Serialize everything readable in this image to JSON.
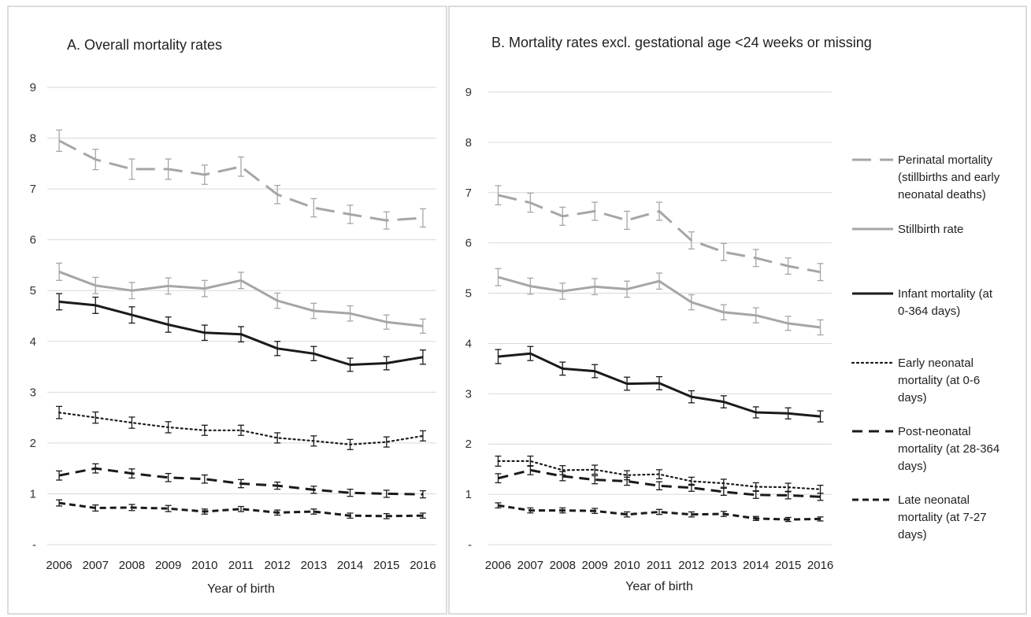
{
  "colors": {
    "perinatal": "#a6a6a6",
    "stillbirth": "#a6a6a6",
    "infant": "#1a1a1a",
    "early_neonatal": "#1a1a1a",
    "post_neonatal": "#1a1a1a",
    "late_neonatal": "#1a1a1a",
    "grid": "#d9d9d9",
    "panel_border": "#d0d0d0"
  },
  "legend": {
    "placement": "right",
    "items": [
      {
        "series": "Perinatal mortality",
        "lines": [
          "Perinatal mortality",
          "(stillbirths and early",
          "neonatal deaths)"
        ]
      },
      {
        "series": "Stillbirth rate",
        "lines": [
          "Stillbirth rate"
        ]
      },
      {
        "series": "Infant mortality",
        "lines": [
          "Infant mortality (at",
          "0-364 days)"
        ]
      },
      {
        "series": "Early neonatal mortality",
        "lines": [
          "Early neonatal",
          "mortality (at 0-6",
          "days)"
        ]
      },
      {
        "series": "Post-neonatal mortality",
        "lines": [
          "Post-neonatal",
          "mortality (at 28-364",
          "days)"
        ]
      },
      {
        "series": "Late neonatal mortality",
        "lines": [
          "Late neonatal",
          "mortality (at 7-27",
          "days)"
        ]
      }
    ]
  },
  "chart_data": [
    {
      "type": "line",
      "title": "A. Overall mortality rates",
      "xlabel": "Year of birth",
      "ylabel": "",
      "x": [
        "2006",
        "2007",
        "2008",
        "2009",
        "2010",
        "2011",
        "2012",
        "2013",
        "2014",
        "2015",
        "2016"
      ],
      "ylim": [
        0,
        9
      ],
      "yticks": [
        "-",
        "1",
        "2",
        "3",
        "4",
        "5",
        "6",
        "7",
        "8",
        "9"
      ],
      "grid": true,
      "error_bars": true,
      "series": [
        {
          "name": "Perinatal mortality (stillbirths and early neonatal deaths)",
          "style": "longdash",
          "color": "#a6a6a6",
          "values": [
            7.95,
            7.58,
            7.39,
            7.39,
            7.28,
            7.44,
            6.89,
            6.63,
            6.5,
            6.38,
            6.43
          ],
          "err": [
            0.21,
            0.2,
            0.2,
            0.2,
            0.19,
            0.19,
            0.18,
            0.18,
            0.18,
            0.17,
            0.18
          ]
        },
        {
          "name": "Stillbirth rate",
          "style": "solid",
          "color": "#a6a6a6",
          "values": [
            5.37,
            5.1,
            5.0,
            5.09,
            5.04,
            5.2,
            4.8,
            4.6,
            4.55,
            4.38,
            4.3
          ],
          "err": [
            0.17,
            0.16,
            0.16,
            0.16,
            0.16,
            0.16,
            0.15,
            0.15,
            0.15,
            0.14,
            0.14
          ]
        },
        {
          "name": "Infant mortality (at 0-364 days)",
          "style": "solid",
          "color": "#1a1a1a",
          "values": [
            4.78,
            4.71,
            4.52,
            4.33,
            4.17,
            4.14,
            3.86,
            3.76,
            3.54,
            3.57,
            3.69
          ],
          "err": [
            0.16,
            0.16,
            0.16,
            0.15,
            0.15,
            0.15,
            0.14,
            0.14,
            0.13,
            0.13,
            0.14
          ]
        },
        {
          "name": "Early neonatal mortality (at 0-6 days)",
          "style": "dotted",
          "color": "#1a1a1a",
          "values": [
            2.6,
            2.5,
            2.4,
            2.31,
            2.25,
            2.25,
            2.1,
            2.04,
            1.97,
            2.02,
            2.14
          ],
          "err": [
            0.12,
            0.11,
            0.11,
            0.11,
            0.1,
            0.1,
            0.1,
            0.1,
            0.1,
            0.1,
            0.1
          ]
        },
        {
          "name": "Post-neonatal mortality (at 28-364 days)",
          "style": "dash",
          "color": "#1a1a1a",
          "values": [
            1.36,
            1.5,
            1.4,
            1.32,
            1.29,
            1.2,
            1.16,
            1.08,
            1.02,
            1.0,
            0.99
          ],
          "err": [
            0.09,
            0.09,
            0.09,
            0.08,
            0.08,
            0.08,
            0.07,
            0.07,
            0.07,
            0.07,
            0.07
          ]
        },
        {
          "name": "Late neonatal mortality (at 7-27 days)",
          "style": "shortdash",
          "color": "#1a1a1a",
          "values": [
            0.82,
            0.72,
            0.73,
            0.71,
            0.65,
            0.7,
            0.63,
            0.65,
            0.57,
            0.56,
            0.57
          ],
          "err": [
            0.06,
            0.06,
            0.06,
            0.06,
            0.05,
            0.05,
            0.05,
            0.05,
            0.05,
            0.05,
            0.05
          ]
        }
      ]
    },
    {
      "type": "line",
      "title": "B. Mortality rates excl. gestational age <24 weeks or missing",
      "xlabel": "Year of birth",
      "ylabel": "",
      "x": [
        "2006",
        "2007",
        "2008",
        "2009",
        "2010",
        "2011",
        "2012",
        "2013",
        "2014",
        "2015",
        "2016"
      ],
      "ylim": [
        0,
        9
      ],
      "yticks": [
        "-",
        "1",
        "2",
        "3",
        "4",
        "5",
        "6",
        "7",
        "8",
        "9"
      ],
      "grid": true,
      "error_bars": true,
      "series": [
        {
          "name": "Perinatal mortality (stillbirths and early neonatal deaths)",
          "style": "longdash",
          "color": "#a6a6a6",
          "values": [
            6.95,
            6.8,
            6.53,
            6.63,
            6.45,
            6.63,
            6.05,
            5.82,
            5.7,
            5.54,
            5.42
          ],
          "err": [
            0.19,
            0.19,
            0.18,
            0.18,
            0.18,
            0.18,
            0.17,
            0.17,
            0.17,
            0.16,
            0.17
          ]
        },
        {
          "name": "Stillbirth rate",
          "style": "solid",
          "color": "#a6a6a6",
          "values": [
            5.32,
            5.14,
            5.04,
            5.13,
            5.08,
            5.24,
            4.82,
            4.62,
            4.56,
            4.4,
            4.32
          ],
          "err": [
            0.17,
            0.16,
            0.16,
            0.16,
            0.16,
            0.16,
            0.15,
            0.15,
            0.15,
            0.14,
            0.15
          ]
        },
        {
          "name": "Infant mortality (at 0-364 days)",
          "style": "solid",
          "color": "#1a1a1a",
          "values": [
            3.74,
            3.8,
            3.5,
            3.45,
            3.2,
            3.21,
            2.94,
            2.84,
            2.63,
            2.61,
            2.55
          ],
          "err": [
            0.14,
            0.14,
            0.13,
            0.13,
            0.13,
            0.13,
            0.12,
            0.12,
            0.11,
            0.11,
            0.11
          ]
        },
        {
          "name": "Early neonatal mortality (at 0-6 days)",
          "style": "dotted",
          "color": "#1a1a1a",
          "values": [
            1.66,
            1.66,
            1.48,
            1.49,
            1.38,
            1.4,
            1.26,
            1.22,
            1.15,
            1.14,
            1.1
          ],
          "err": [
            0.1,
            0.1,
            0.09,
            0.09,
            0.09,
            0.09,
            0.08,
            0.08,
            0.08,
            0.08,
            0.08
          ]
        },
        {
          "name": "Post-neonatal mortality (at 28-364 days)",
          "style": "dash",
          "color": "#1a1a1a",
          "values": [
            1.32,
            1.48,
            1.36,
            1.29,
            1.26,
            1.17,
            1.13,
            1.05,
            0.99,
            0.98,
            0.95
          ],
          "err": [
            0.09,
            0.09,
            0.09,
            0.08,
            0.08,
            0.08,
            0.07,
            0.07,
            0.07,
            0.07,
            0.07
          ]
        },
        {
          "name": "Late neonatal mortality (at 7-27 days)",
          "style": "shortdash",
          "color": "#1a1a1a",
          "values": [
            0.78,
            0.68,
            0.68,
            0.67,
            0.6,
            0.65,
            0.6,
            0.61,
            0.52,
            0.5,
            0.51
          ],
          "err": [
            0.05,
            0.05,
            0.05,
            0.05,
            0.05,
            0.05,
            0.05,
            0.05,
            0.04,
            0.04,
            0.04
          ]
        }
      ]
    }
  ]
}
